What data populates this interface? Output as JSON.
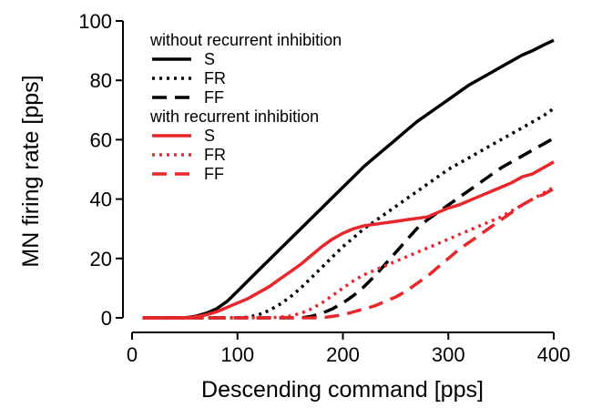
{
  "chart_data": {
    "type": "line",
    "xlabel": "Descending command [pps]",
    "ylabel": "MN firing rate [pps]",
    "xlim": [
      0,
      400
    ],
    "ylim": [
      0,
      100
    ],
    "xticks": [
      0,
      100,
      200,
      300,
      400
    ],
    "yticks": [
      0,
      20,
      40,
      60,
      80,
      100
    ],
    "grid": false,
    "legend_placement": "top-left",
    "legend_groups": [
      {
        "heading": "without recurrent inhibition",
        "series": [
          0,
          1,
          2
        ]
      },
      {
        "heading": "with recurrent inhibition",
        "series": [
          3,
          4,
          5
        ]
      }
    ],
    "series": [
      {
        "name": "S",
        "color": "#000000",
        "dash": "solid",
        "x": [
          10,
          50,
          60,
          70,
          80,
          90,
          100,
          110,
          120,
          130,
          140,
          150,
          160,
          170,
          180,
          190,
          200,
          210,
          220,
          230,
          240,
          250,
          260,
          270,
          280,
          290,
          300,
          310,
          320,
          330,
          340,
          350,
          360,
          370,
          380,
          390,
          400
        ],
        "y": [
          0,
          0,
          0.5,
          1.5,
          3,
          5.5,
          9,
          12.5,
          16,
          19.5,
          23,
          26.5,
          30,
          33.5,
          37,
          40.5,
          44,
          47.5,
          51,
          54,
          57,
          60,
          63,
          66,
          68.5,
          71,
          73.5,
          76,
          78.5,
          80.5,
          82.5,
          84.5,
          86.5,
          88.5,
          90,
          91.8,
          93.5
        ]
      },
      {
        "name": "FR",
        "color": "#000000",
        "dash": "dotted",
        "x": [
          10,
          100,
          110,
          120,
          130,
          140,
          150,
          160,
          170,
          180,
          190,
          200,
          210,
          220,
          230,
          240,
          250,
          260,
          270,
          280,
          290,
          300,
          310,
          320,
          330,
          340,
          350,
          360,
          370,
          380,
          390,
          400
        ],
        "y": [
          0,
          0,
          0.2,
          1,
          2.5,
          4.5,
          7,
          10,
          13.5,
          17,
          20.5,
          24,
          27,
          30,
          32.5,
          35,
          37.5,
          40,
          42.5,
          45,
          47.5,
          50,
          52,
          54,
          56,
          58,
          60,
          62,
          64,
          66,
          68,
          70.5
        ]
      },
      {
        "name": "FF",
        "color": "#000000",
        "dash": "dashed",
        "x": [
          10,
          160,
          170,
          180,
          190,
          200,
          210,
          220,
          230,
          240,
          250,
          260,
          270,
          280,
          290,
          300,
          310,
          320,
          330,
          340,
          350,
          360,
          370,
          380,
          390,
          400
        ],
        "y": [
          0,
          0,
          0.5,
          1.5,
          3,
          5,
          7.5,
          10.5,
          14,
          18,
          22,
          26,
          30,
          33,
          35.5,
          38,
          40.5,
          43,
          45.5,
          48,
          50.5,
          52.5,
          54.5,
          56.5,
          58.5,
          60.5
        ]
      },
      {
        "name": "S",
        "color": "#e8262b",
        "dash": "solid",
        "x": [
          10,
          50,
          60,
          70,
          80,
          90,
          100,
          110,
          120,
          130,
          140,
          150,
          160,
          170,
          180,
          190,
          200,
          210,
          220,
          230,
          240,
          250,
          260,
          270,
          280,
          290,
          300,
          310,
          320,
          330,
          340,
          350,
          360,
          370,
          380,
          390,
          400
        ],
        "y": [
          0,
          0,
          0.3,
          1,
          2,
          3.5,
          5,
          6.5,
          8.5,
          10.5,
          13,
          15.5,
          18,
          21,
          24,
          26.5,
          28.5,
          30,
          31,
          31.5,
          32,
          32.5,
          33,
          33.5,
          34,
          35.5,
          37,
          38,
          39.5,
          41,
          42.5,
          44,
          45.5,
          47.5,
          48.5,
          50.5,
          52.5
        ]
      },
      {
        "name": "FR",
        "color": "#e8262b",
        "dash": "dotted",
        "x": [
          10,
          130,
          140,
          150,
          160,
          170,
          180,
          190,
          200,
          210,
          220,
          230,
          240,
          250,
          260,
          270,
          280,
          290,
          300,
          310,
          320,
          330,
          340,
          350,
          360,
          370,
          380,
          390,
          400
        ],
        "y": [
          0,
          0,
          0.2,
          0.6,
          1.5,
          3,
          5,
          7.5,
          10,
          12.5,
          14.5,
          16,
          17.5,
          19,
          20.5,
          22,
          23.5,
          25,
          26.5,
          28,
          29.5,
          31,
          32.5,
          34,
          36,
          38,
          40,
          42,
          44
        ]
      },
      {
        "name": "FF",
        "color": "#e8262b",
        "dash": "dashed",
        "x": [
          10,
          180,
          190,
          200,
          210,
          220,
          230,
          240,
          250,
          260,
          270,
          280,
          290,
          300,
          310,
          320,
          330,
          340,
          350,
          360,
          370,
          380,
          390,
          400
        ],
        "y": [
          0,
          0,
          0.5,
          1,
          2,
          3,
          4,
          5.5,
          7,
          9,
          11.5,
          14,
          17,
          20,
          23,
          25.5,
          28,
          30.5,
          33,
          35.5,
          38,
          40,
          41.5,
          43.5
        ]
      }
    ]
  }
}
